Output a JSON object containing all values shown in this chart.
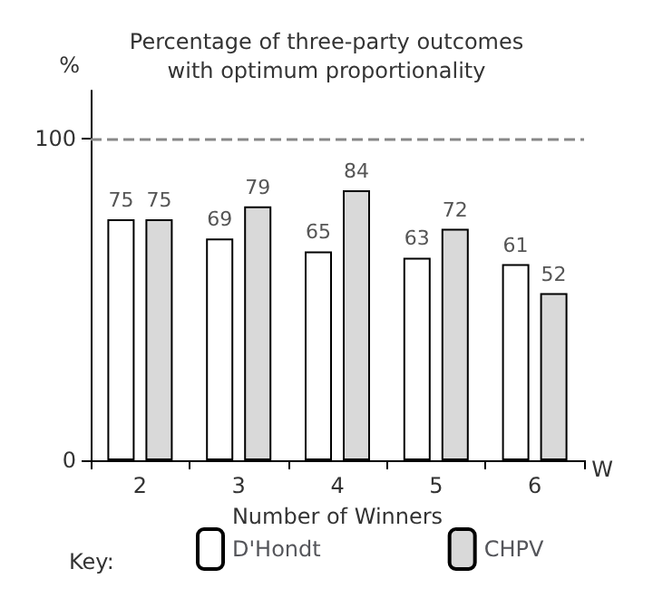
{
  "chart_data": {
    "type": "bar",
    "title": "Percentage of three-party outcomes\nwith optimum proportionality",
    "xlabel": "Number of Winners",
    "ylabel": "%",
    "legend_title": "Key:",
    "annotations": [
      "W"
    ],
    "categories": [
      "2",
      "3",
      "4",
      "5",
      "6"
    ],
    "series": [
      {
        "name": "D'Hondt",
        "color": "#ffffff",
        "values": [
          75,
          69,
          65,
          63,
          61
        ]
      },
      {
        "name": "CHPV",
        "color": "#d9d9d9",
        "values": [
          75,
          79,
          84,
          72,
          52
        ]
      }
    ],
    "ylim": [
      0,
      115
    ],
    "yticks": [
      0,
      100
    ],
    "ref_lines": [
      {
        "axis": "y",
        "value": 100,
        "color": "#888888",
        "line_style": "dashed"
      }
    ],
    "data_labels": true,
    "grid": false,
    "legend": "bottom"
  }
}
